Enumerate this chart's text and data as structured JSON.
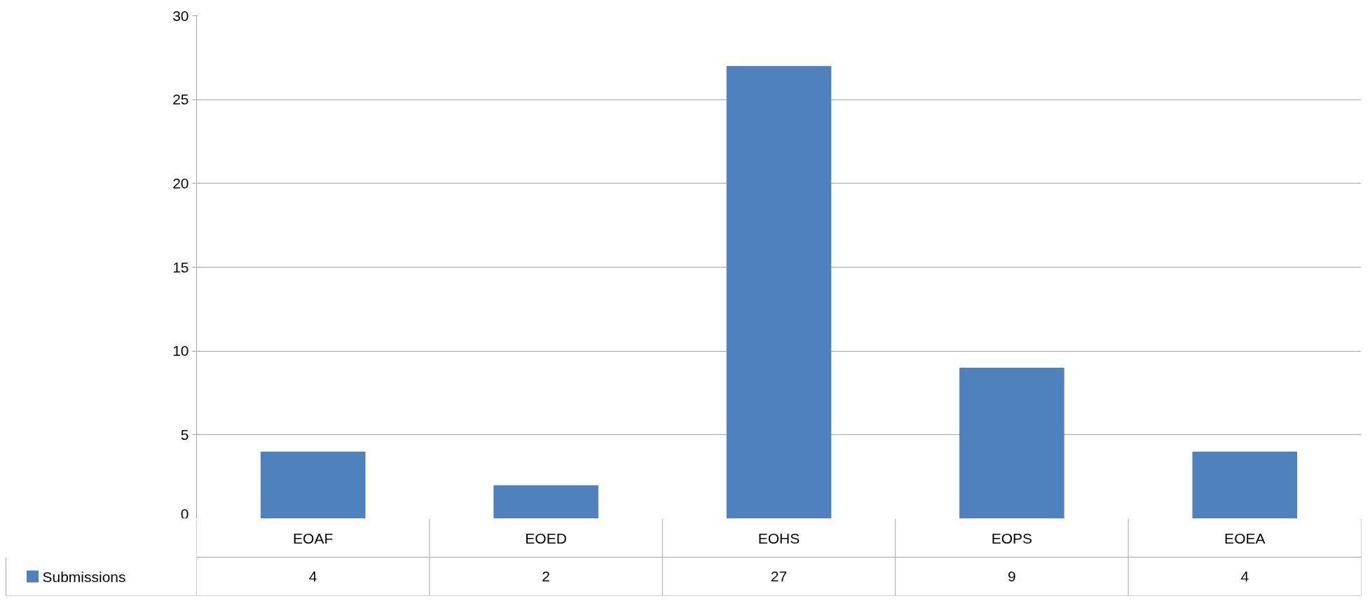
{
  "chart_data": {
    "type": "bar",
    "categories": [
      "EOAF",
      "EOED",
      "EOHS",
      "EOPS",
      "EOEA"
    ],
    "series": [
      {
        "name": "Submissions",
        "color": "#4f81bd",
        "values": [
          4,
          2,
          27,
          9,
          4
        ]
      }
    ],
    "ylim": [
      0,
      30
    ],
    "yticks": [
      0,
      5,
      10,
      15,
      20,
      25,
      30
    ],
    "grid": "y",
    "legend": "bottom left",
    "data_labels": true
  }
}
